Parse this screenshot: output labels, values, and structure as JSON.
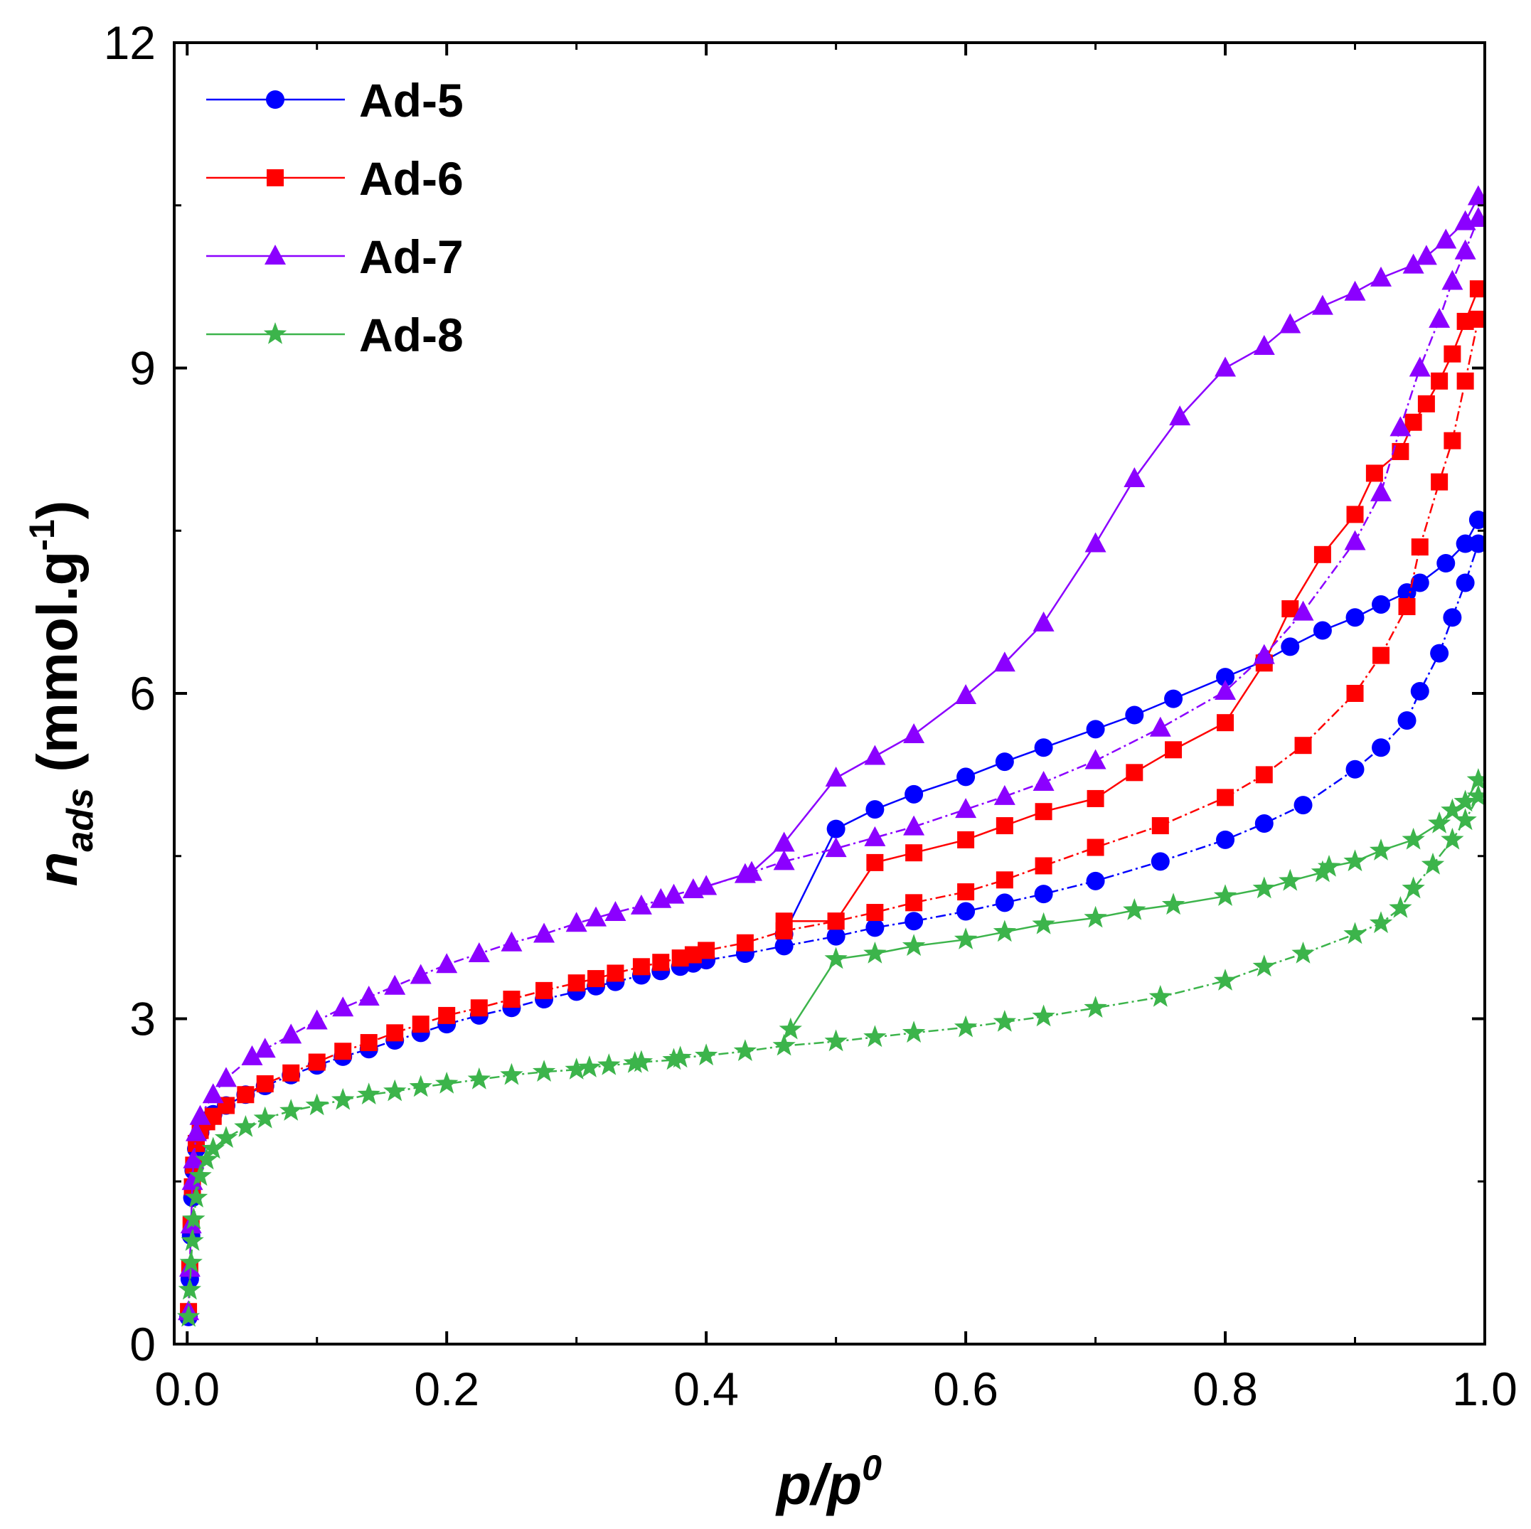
{
  "chart_data": {
    "type": "line",
    "title": "",
    "xlabel_main": "p/p",
    "xlabel_sup": "0",
    "ylabel_main": "n",
    "ylabel_sub": "ads",
    "ylabel_unit": "(mmol.g",
    "ylabel_unit_sup": "-1",
    "ylabel_unit_close": ")",
    "xlim": [
      -0.01,
      1.0
    ],
    "ylim": [
      0,
      12
    ],
    "xticks": [
      0.0,
      0.2,
      0.4,
      0.6,
      0.8,
      1.0
    ],
    "xtick_labels": [
      "0.0",
      "0.2",
      "0.4",
      "0.6",
      "0.8",
      "1.0"
    ],
    "yticks": [
      0,
      3,
      6,
      9,
      12
    ],
    "ytick_labels": [
      "0",
      "3",
      "6",
      "9",
      "12"
    ],
    "legend_position": "top-left",
    "series": [
      {
        "name": "Ad-5",
        "color": "#0000ff",
        "marker": "circle",
        "adsorption": {
          "x": [
            0.001,
            0.002,
            0.003,
            0.004,
            0.005,
            0.007,
            0.01,
            0.015,
            0.02,
            0.03,
            0.045,
            0.06,
            0.08,
            0.1,
            0.12,
            0.14,
            0.16,
            0.18,
            0.2,
            0.225,
            0.25,
            0.275,
            0.3,
            0.315,
            0.33,
            0.35,
            0.365,
            0.38,
            0.39,
            0.4,
            0.43,
            0.46,
            0.5,
            0.53,
            0.56,
            0.6,
            0.63,
            0.66,
            0.7,
            0.75,
            0.8,
            0.83,
            0.86,
            0.9,
            0.92,
            0.94,
            0.95,
            0.965,
            0.975,
            0.985,
            0.995
          ],
          "y": [
            0.25,
            0.6,
            1.0,
            1.35,
            1.6,
            1.8,
            1.95,
            2.05,
            2.12,
            2.2,
            2.3,
            2.38,
            2.48,
            2.57,
            2.65,
            2.72,
            2.8,
            2.87,
            2.95,
            3.03,
            3.1,
            3.18,
            3.25,
            3.3,
            3.34,
            3.4,
            3.44,
            3.48,
            3.51,
            3.54,
            3.6,
            3.67,
            3.76,
            3.84,
            3.9,
            3.99,
            4.07,
            4.15,
            4.27,
            4.45,
            4.65,
            4.8,
            4.97,
            5.3,
            5.5,
            5.75,
            6.02,
            6.37,
            6.7,
            7.02,
            7.38
          ]
        },
        "desorption": {
          "x": [
            0.995,
            0.985,
            0.97,
            0.95,
            0.94,
            0.92,
            0.9,
            0.875,
            0.85,
            0.83,
            0.8,
            0.76,
            0.73,
            0.7,
            0.66,
            0.63,
            0.6,
            0.56,
            0.53,
            0.5,
            0.46
          ],
          "y": [
            7.6,
            7.38,
            7.2,
            7.02,
            6.93,
            6.82,
            6.7,
            6.58,
            6.43,
            6.3,
            6.15,
            5.95,
            5.8,
            5.67,
            5.5,
            5.37,
            5.23,
            5.07,
            4.93,
            4.75,
            3.78
          ]
        }
      },
      {
        "name": "Ad-6",
        "color": "#ff0000",
        "marker": "square",
        "adsorption": {
          "x": [
            0.001,
            0.002,
            0.003,
            0.004,
            0.005,
            0.007,
            0.01,
            0.015,
            0.02,
            0.03,
            0.045,
            0.06,
            0.08,
            0.1,
            0.12,
            0.14,
            0.16,
            0.18,
            0.2,
            0.225,
            0.25,
            0.275,
            0.3,
            0.315,
            0.33,
            0.35,
            0.365,
            0.38,
            0.39,
            0.4,
            0.43,
            0.46,
            0.5,
            0.53,
            0.56,
            0.6,
            0.63,
            0.66,
            0.7,
            0.75,
            0.8,
            0.83,
            0.86,
            0.9,
            0.92,
            0.94,
            0.95,
            0.965,
            0.975,
            0.985,
            0.995
          ],
          "y": [
            0.3,
            0.7,
            1.1,
            1.45,
            1.65,
            1.85,
            1.97,
            2.05,
            2.1,
            2.2,
            2.3,
            2.4,
            2.5,
            2.6,
            2.7,
            2.78,
            2.87,
            2.95,
            3.03,
            3.1,
            3.18,
            3.26,
            3.33,
            3.37,
            3.42,
            3.48,
            3.52,
            3.56,
            3.59,
            3.63,
            3.7,
            3.81,
            3.9,
            3.98,
            4.07,
            4.17,
            4.28,
            4.41,
            4.58,
            4.78,
            5.04,
            5.25,
            5.52,
            6.0,
            6.35,
            6.8,
            7.35,
            7.95,
            8.33,
            8.88,
            9.45
          ]
        },
        "desorption": {
          "x": [
            0.995,
            0.985,
            0.975,
            0.965,
            0.955,
            0.945,
            0.935,
            0.915,
            0.9,
            0.875,
            0.85,
            0.83,
            0.8,
            0.76,
            0.73,
            0.7,
            0.66,
            0.63,
            0.6,
            0.56,
            0.53,
            0.5,
            0.46
          ],
          "y": [
            9.73,
            9.43,
            9.13,
            8.88,
            8.67,
            8.5,
            8.23,
            8.03,
            7.65,
            7.28,
            6.78,
            6.28,
            5.73,
            5.48,
            5.27,
            5.03,
            4.91,
            4.78,
            4.65,
            4.53,
            4.44,
            3.9,
            3.9
          ]
        }
      },
      {
        "name": "Ad-7",
        "color": "#8b00ff",
        "marker": "triangle",
        "adsorption": {
          "x": [
            0.001,
            0.002,
            0.003,
            0.004,
            0.005,
            0.007,
            0.01,
            0.02,
            0.03,
            0.05,
            0.06,
            0.08,
            0.1,
            0.12,
            0.14,
            0.16,
            0.18,
            0.2,
            0.225,
            0.25,
            0.275,
            0.3,
            0.315,
            0.33,
            0.35,
            0.365,
            0.375,
            0.39,
            0.4,
            0.43,
            0.46,
            0.5,
            0.53,
            0.56,
            0.6,
            0.63,
            0.66,
            0.7,
            0.75,
            0.8,
            0.83,
            0.86,
            0.9,
            0.92,
            0.935,
            0.95,
            0.965,
            0.975,
            0.985,
            0.995
          ],
          "y": [
            0.3,
            0.7,
            1.1,
            1.5,
            1.7,
            1.95,
            2.1,
            2.3,
            2.45,
            2.65,
            2.72,
            2.85,
            2.98,
            3.1,
            3.2,
            3.3,
            3.4,
            3.5,
            3.6,
            3.7,
            3.78,
            3.88,
            3.93,
            3.98,
            4.04,
            4.1,
            4.14,
            4.19,
            4.22,
            4.33,
            4.45,
            4.57,
            4.67,
            4.77,
            4.93,
            5.05,
            5.18,
            5.38,
            5.68,
            6.02,
            6.35,
            6.75,
            7.4,
            7.85,
            8.45,
            9.0,
            9.45,
            9.8,
            10.08,
            10.38
          ]
        },
        "desorption": {
          "x": [
            0.995,
            0.985,
            0.97,
            0.955,
            0.945,
            0.92,
            0.9,
            0.875,
            0.85,
            0.83,
            0.8,
            0.765,
            0.73,
            0.7,
            0.66,
            0.63,
            0.6,
            0.56,
            0.53,
            0.5,
            0.46,
            0.435,
            0.4
          ],
          "y": [
            10.58,
            10.35,
            10.18,
            10.03,
            9.95,
            9.83,
            9.7,
            9.57,
            9.4,
            9.2,
            9.0,
            8.55,
            7.98,
            7.38,
            6.65,
            6.28,
            5.98,
            5.62,
            5.42,
            5.22,
            4.62,
            4.35,
            4.22
          ]
        }
      },
      {
        "name": "Ad-8",
        "color": "#3cb44b",
        "marker": "star",
        "adsorption": {
          "x": [
            0.001,
            0.002,
            0.003,
            0.004,
            0.005,
            0.007,
            0.01,
            0.015,
            0.02,
            0.03,
            0.045,
            0.06,
            0.08,
            0.1,
            0.12,
            0.14,
            0.16,
            0.18,
            0.2,
            0.225,
            0.25,
            0.275,
            0.3,
            0.31,
            0.325,
            0.345,
            0.35,
            0.375,
            0.38,
            0.4,
            0.43,
            0.46,
            0.5,
            0.53,
            0.56,
            0.6,
            0.63,
            0.66,
            0.7,
            0.75,
            0.8,
            0.83,
            0.86,
            0.9,
            0.92,
            0.935,
            0.945,
            0.96,
            0.975,
            0.985,
            0.995
          ],
          "y": [
            0.25,
            0.5,
            0.75,
            0.95,
            1.15,
            1.35,
            1.55,
            1.7,
            1.8,
            1.9,
            2.0,
            2.08,
            2.15,
            2.2,
            2.25,
            2.3,
            2.33,
            2.37,
            2.4,
            2.44,
            2.48,
            2.51,
            2.53,
            2.55,
            2.57,
            2.59,
            2.6,
            2.62,
            2.64,
            2.66,
            2.7,
            2.75,
            2.79,
            2.83,
            2.87,
            2.92,
            2.97,
            3.02,
            3.1,
            3.2,
            3.35,
            3.48,
            3.6,
            3.78,
            3.88,
            4.02,
            4.2,
            4.42,
            4.65,
            4.83,
            5.05
          ]
        },
        "desorption": {
          "x": [
            0.995,
            0.985,
            0.975,
            0.965,
            0.945,
            0.92,
            0.9,
            0.88,
            0.875,
            0.85,
            0.83,
            0.8,
            0.76,
            0.73,
            0.7,
            0.66,
            0.63,
            0.6,
            0.56,
            0.53,
            0.5,
            0.465
          ],
          "y": [
            5.2,
            5.0,
            4.92,
            4.8,
            4.65,
            4.55,
            4.45,
            4.4,
            4.35,
            4.27,
            4.2,
            4.13,
            4.05,
            4.0,
            3.93,
            3.87,
            3.8,
            3.73,
            3.67,
            3.6,
            3.55,
            2.9
          ]
        }
      }
    ]
  }
}
